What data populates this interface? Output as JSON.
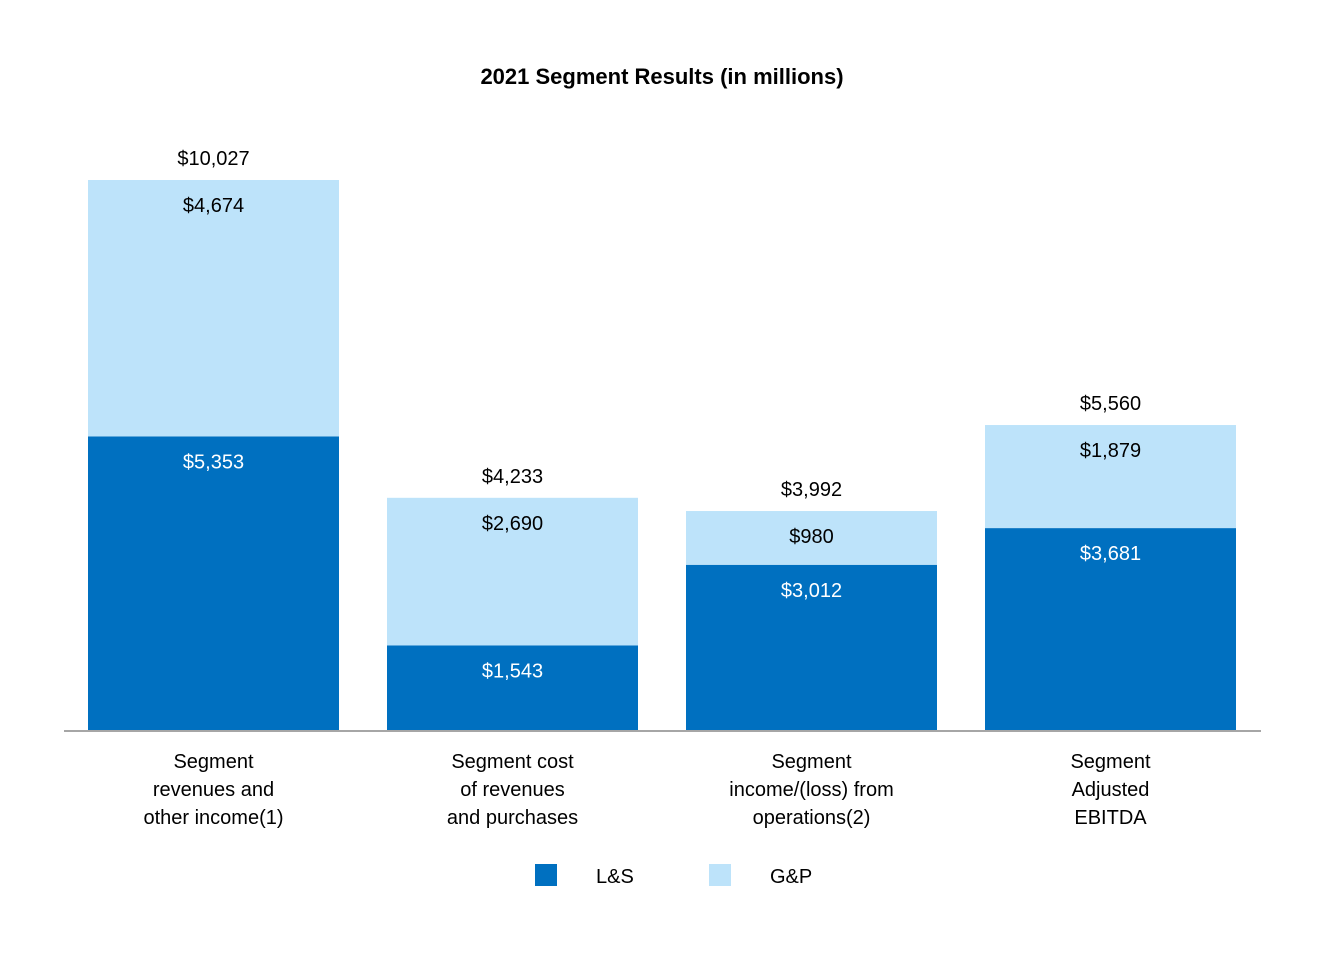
{
  "chart_data": {
    "type": "bar",
    "stacked": true,
    "title": "2021 Segment Results (in millions)",
    "xlabel": "",
    "ylabel": "",
    "ylim": [
      0,
      10027
    ],
    "grid": false,
    "legend_position": "bottom",
    "categories": [
      [
        "Segment",
        "revenues and",
        "other income(1)"
      ],
      [
        "Segment cost",
        "of revenues",
        "and purchases"
      ],
      [
        "Segment",
        "income/(loss) from",
        "operations(2)"
      ],
      [
        "Segment",
        "Adjusted",
        "EBITDA"
      ]
    ],
    "series": [
      {
        "name": "L&S",
        "color": "#0070C0",
        "values": [
          5353,
          1543,
          3012,
          3681
        ],
        "labels": [
          "$5,353",
          "$1,543",
          "$3,012",
          "$3,681"
        ]
      },
      {
        "name": "G&P",
        "color": "#BDE3FA",
        "values": [
          4674,
          2690,
          980,
          1879
        ],
        "labels": [
          "$4,674",
          "$2,690",
          "$980",
          "$1,879"
        ]
      }
    ],
    "totals": [
      10027,
      4233,
      3992,
      5560
    ],
    "total_labels": [
      "$10,027",
      "$4,233",
      "$3,992",
      "$5,560"
    ]
  }
}
